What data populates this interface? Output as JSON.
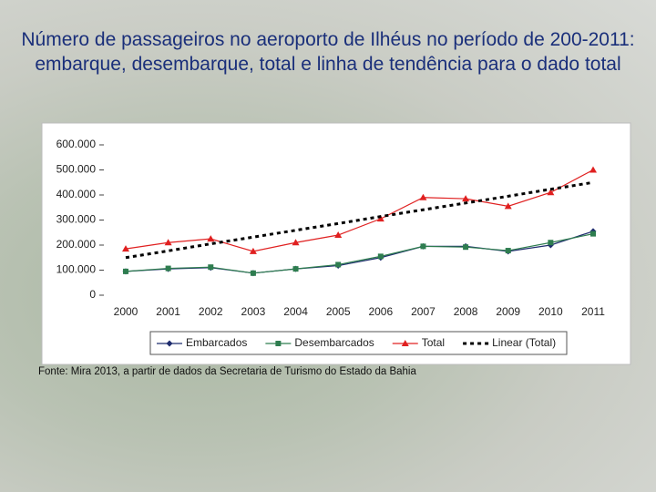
{
  "chart_data": {
    "type": "line",
    "title": "Número de passageiros no aeroporto de Ilhéus no período de 200-2011: embarque, desembarque, total e linha de tendência para o dado total",
    "source": "Fonte: Mira 2013, a partir de dados da Secretaria de Turismo do Estado da Bahia",
    "categories": [
      "2000",
      "2001",
      "2002",
      "2003",
      "2004",
      "2005",
      "2006",
      "2007",
      "2008",
      "2009",
      "2010",
      "2011"
    ],
    "series": [
      {
        "name": "Embarcados",
        "color": "#1f2d6e",
        "marker": "diamond",
        "values": [
          95000,
          105000,
          110000,
          88000,
          105000,
          118000,
          150000,
          195000,
          195000,
          175000,
          200000,
          255000
        ]
      },
      {
        "name": "Desembarcados",
        "color": "#2e7d4f",
        "marker": "square",
        "values": [
          95000,
          107000,
          112000,
          88000,
          105000,
          122000,
          155000,
          195000,
          192000,
          178000,
          210000,
          245000
        ]
      },
      {
        "name": "Total",
        "color": "#e02020",
        "marker": "triangle",
        "values": [
          185000,
          210000,
          225000,
          175000,
          210000,
          240000,
          305000,
          390000,
          385000,
          355000,
          410000,
          500000
        ]
      },
      {
        "name": "Linear (Total)",
        "color": "#000000",
        "dashed": true,
        "values": [
          150000,
          177000,
          205000,
          232000,
          259000,
          286000,
          314000,
          341000,
          368000,
          395000,
          423000,
          450000
        ]
      }
    ],
    "ylim": [
      0,
      600000
    ],
    "yticks": [
      0,
      {
        "value": 100000,
        "label": "100.000"
      },
      {
        "value": 200000,
        "label": "200.000"
      },
      {
        "value": 300000,
        "label": "300.000"
      },
      {
        "value": 400000,
        "label": "400.000"
      },
      {
        "value": 500000,
        "label": "500.000"
      },
      {
        "value": 600000,
        "label": "600.000"
      }
    ]
  }
}
